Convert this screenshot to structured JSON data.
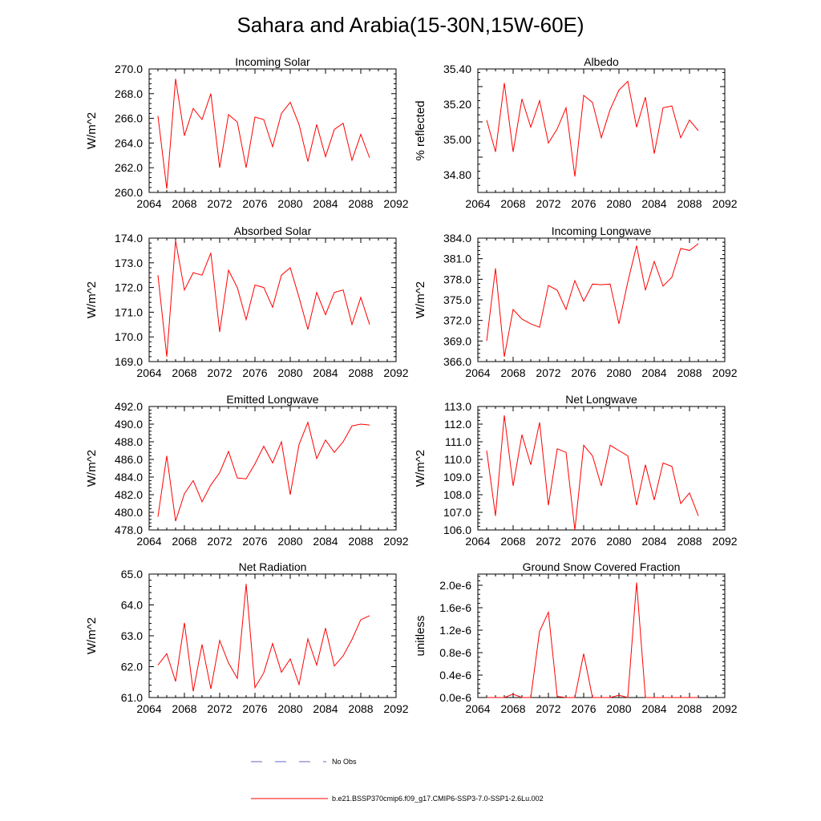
{
  "title": "Sahara and Arabia(15-30N,15W-60E)",
  "colors": {
    "model": "#ff0000",
    "obs": "#6666cc",
    "axis": "#000000"
  },
  "legend": {
    "obs_label": "No Obs",
    "model_label": "b.e21.BSSP370cmip6.f09_g17.CMIP6-SSP3-7.0-SSP1-2.6Lu.002"
  },
  "chart_data": [
    {
      "type": "line",
      "title": "Incoming Solar",
      "ylabel": "W/m^2",
      "xlabel": "",
      "xlim": [
        2064,
        2092
      ],
      "ylim": [
        260,
        270
      ],
      "xticks": [
        2064,
        2068,
        2072,
        2076,
        2080,
        2084,
        2088,
        2092
      ],
      "xtick_labels": [
        "2064",
        "2068",
        "2072",
        "2076",
        "2080",
        "2084",
        "2088",
        "2092"
      ],
      "yticks": [
        260,
        262,
        264,
        266,
        268,
        270
      ],
      "ytick_labels": [
        "260.0",
        "262.0",
        "264.0",
        "266.0",
        "268.0",
        "270.0"
      ],
      "x": [
        2065,
        2066,
        2067,
        2068,
        2069,
        2070,
        2071,
        2072,
        2073,
        2074,
        2075,
        2076,
        2077,
        2078,
        2079,
        2080,
        2081,
        2082,
        2083,
        2084,
        2085,
        2086,
        2087,
        2088,
        2089
      ],
      "y": [
        266.2,
        260.3,
        269.2,
        264.6,
        266.8,
        265.9,
        268.0,
        262.0,
        266.3,
        265.7,
        262.0,
        266.1,
        265.9,
        263.7,
        266.4,
        267.3,
        265.5,
        262.5,
        265.5,
        262.9,
        265.1,
        265.6,
        262.6,
        264.7,
        262.8
      ]
    },
    {
      "type": "line",
      "title": "Albedo",
      "ylabel": "% reflected",
      "xlabel": "",
      "xlim": [
        2064,
        2092
      ],
      "ylim": [
        34.7,
        35.4
      ],
      "xticks": [
        2064,
        2068,
        2072,
        2076,
        2080,
        2084,
        2088,
        2092
      ],
      "xtick_labels": [
        "2064",
        "2068",
        "2072",
        "2076",
        "2080",
        "2084",
        "2088",
        "2092"
      ],
      "yticks": [
        34.8,
        35.0,
        35.2,
        35.4
      ],
      "ytick_labels": [
        "34.80",
        "35.00",
        "35.20",
        "35.40"
      ],
      "x": [
        2065,
        2066,
        2067,
        2068,
        2069,
        2070,
        2071,
        2072,
        2073,
        2074,
        2075,
        2076,
        2077,
        2078,
        2079,
        2080,
        2081,
        2082,
        2083,
        2084,
        2085,
        2086,
        2087,
        2088,
        2089
      ],
      "y": [
        35.11,
        34.93,
        35.32,
        34.93,
        35.23,
        35.07,
        35.22,
        34.98,
        35.06,
        35.18,
        34.79,
        35.25,
        35.21,
        35.01,
        35.17,
        35.28,
        35.33,
        35.07,
        35.24,
        34.92,
        35.18,
        35.19,
        35.01,
        35.11,
        35.05
      ]
    },
    {
      "type": "line",
      "title": "Absorbed Solar",
      "ylabel": "W/m^2",
      "xlabel": "",
      "xlim": [
        2064,
        2092
      ],
      "ylim": [
        169,
        174
      ],
      "xticks": [
        2064,
        2068,
        2072,
        2076,
        2080,
        2084,
        2088,
        2092
      ],
      "xtick_labels": [
        "2064",
        "2068",
        "2072",
        "2076",
        "2080",
        "2084",
        "2088",
        "2092"
      ],
      "yticks": [
        169,
        170,
        171,
        172,
        173,
        174
      ],
      "ytick_labels": [
        "169.0",
        "170.0",
        "171.0",
        "172.0",
        "173.0",
        "174.0"
      ],
      "x": [
        2065,
        2066,
        2067,
        2068,
        2069,
        2070,
        2071,
        2072,
        2073,
        2074,
        2075,
        2076,
        2077,
        2078,
        2079,
        2080,
        2081,
        2082,
        2083,
        2084,
        2085,
        2086,
        2087,
        2088,
        2089
      ],
      "y": [
        172.5,
        169.2,
        173.9,
        171.9,
        172.6,
        172.5,
        173.4,
        170.2,
        172.7,
        172.0,
        170.7,
        172.1,
        172.0,
        171.2,
        172.5,
        172.8,
        171.6,
        170.3,
        171.8,
        170.9,
        171.8,
        171.9,
        170.5,
        171.6,
        170.5
      ]
    },
    {
      "type": "line",
      "title": "Incoming Longwave",
      "ylabel": "W/m^2",
      "xlabel": "",
      "xlim": [
        2064,
        2092
      ],
      "ylim": [
        366,
        384
      ],
      "xticks": [
        2064,
        2068,
        2072,
        2076,
        2080,
        2084,
        2088,
        2092
      ],
      "xtick_labels": [
        "2064",
        "2068",
        "2072",
        "2076",
        "2080",
        "2084",
        "2088",
        "2092"
      ],
      "yticks": [
        366,
        369,
        372,
        375,
        378,
        381,
        384
      ],
      "ytick_labels": [
        "366.0",
        "369.0",
        "372.0",
        "375.0",
        "378.0",
        "381.0",
        "384.0"
      ],
      "x": [
        2065,
        2066,
        2067,
        2068,
        2069,
        2070,
        2071,
        2072,
        2073,
        2074,
        2075,
        2076,
        2077,
        2078,
        2079,
        2080,
        2081,
        2082,
        2083,
        2084,
        2085,
        2086,
        2087,
        2088,
        2089
      ],
      "y": [
        369.0,
        379.6,
        366.7,
        373.6,
        372.2,
        371.5,
        371.0,
        377.1,
        376.4,
        373.6,
        377.8,
        374.8,
        377.3,
        377.2,
        377.3,
        371.5,
        377.6,
        382.9,
        376.4,
        380.6,
        377.0,
        378.3,
        382.5,
        382.2,
        383.2
      ]
    },
    {
      "type": "line",
      "title": "Emitted Longwave",
      "ylabel": "W/m^2",
      "xlabel": "",
      "xlim": [
        2064,
        2092
      ],
      "ylim": [
        478,
        492
      ],
      "xticks": [
        2064,
        2068,
        2072,
        2076,
        2080,
        2084,
        2088,
        2092
      ],
      "xtick_labels": [
        "2064",
        "2068",
        "2072",
        "2076",
        "2080",
        "2084",
        "2088",
        "2092"
      ],
      "yticks": [
        478,
        480,
        482,
        484,
        486,
        488,
        490,
        492
      ],
      "ytick_labels": [
        "478.0",
        "480.0",
        "482.0",
        "484.0",
        "486.0",
        "488.0",
        "490.0",
        "492.0"
      ],
      "x": [
        2065,
        2066,
        2067,
        2068,
        2069,
        2070,
        2071,
        2072,
        2073,
        2074,
        2075,
        2076,
        2077,
        2078,
        2079,
        2080,
        2081,
        2082,
        2083,
        2084,
        2085,
        2086,
        2087,
        2088,
        2089
      ],
      "y": [
        479.5,
        486.4,
        479.0,
        482.1,
        483.6,
        481.2,
        483.1,
        484.5,
        486.9,
        483.9,
        483.8,
        485.5,
        487.5,
        485.6,
        488.0,
        482.0,
        487.7,
        490.2,
        486.1,
        488.2,
        486.8,
        488.0,
        489.8,
        490.0,
        489.9
      ]
    },
    {
      "type": "line",
      "title": "Net Longwave",
      "ylabel": "W/m^2",
      "xlabel": "",
      "xlim": [
        2064,
        2092
      ],
      "ylim": [
        106,
        113
      ],
      "xticks": [
        2064,
        2068,
        2072,
        2076,
        2080,
        2084,
        2088,
        2092
      ],
      "xtick_labels": [
        "2064",
        "2068",
        "2072",
        "2076",
        "2080",
        "2084",
        "2088",
        "2092"
      ],
      "yticks": [
        106,
        107,
        108,
        109,
        110,
        111,
        112,
        113
      ],
      "ytick_labels": [
        "106.0",
        "107.0",
        "108.0",
        "109.0",
        "110.0",
        "111.0",
        "112.0",
        "113.0"
      ],
      "x": [
        2065,
        2066,
        2067,
        2068,
        2069,
        2070,
        2071,
        2072,
        2073,
        2074,
        2075,
        2076,
        2077,
        2078,
        2079,
        2080,
        2081,
        2082,
        2083,
        2084,
        2085,
        2086,
        2087,
        2088,
        2089
      ],
      "y": [
        110.5,
        106.8,
        112.5,
        108.5,
        111.4,
        109.7,
        112.1,
        107.4,
        110.6,
        110.4,
        106.0,
        110.8,
        110.2,
        108.5,
        110.8,
        110.5,
        110.2,
        107.4,
        109.7,
        107.7,
        109.8,
        109.6,
        107.5,
        108.1,
        106.8
      ]
    },
    {
      "type": "line",
      "title": "Net Radiation",
      "ylabel": "W/m^2",
      "xlabel": "",
      "xlim": [
        2064,
        2092
      ],
      "ylim": [
        61,
        65
      ],
      "xticks": [
        2064,
        2068,
        2072,
        2076,
        2080,
        2084,
        2088,
        2092
      ],
      "xtick_labels": [
        "2064",
        "2068",
        "2072",
        "2076",
        "2080",
        "2084",
        "2088",
        "2092"
      ],
      "yticks": [
        61,
        62,
        63,
        64,
        65
      ],
      "ytick_labels": [
        "61.0",
        "62.0",
        "63.0",
        "64.0",
        "65.0"
      ],
      "x": [
        2065,
        2066,
        2067,
        2068,
        2069,
        2070,
        2071,
        2072,
        2073,
        2074,
        2075,
        2076,
        2077,
        2078,
        2079,
        2080,
        2081,
        2082,
        2083,
        2084,
        2085,
        2086,
        2087,
        2088,
        2089
      ],
      "y": [
        62.05,
        62.42,
        61.52,
        63.42,
        61.2,
        62.72,
        61.28,
        62.85,
        62.12,
        61.62,
        64.68,
        61.32,
        61.8,
        62.75,
        61.82,
        62.25,
        61.42,
        62.9,
        62.05,
        63.25,
        62.02,
        62.35,
        62.88,
        63.52,
        63.65
      ]
    },
    {
      "type": "line",
      "title": "Ground Snow Covered Fraction",
      "ylabel": "unitless",
      "xlabel": "",
      "xlim": [
        2064,
        2092
      ],
      "ylim": [
        0,
        2.2e-06
      ],
      "xticks": [
        2064,
        2068,
        2072,
        2076,
        2080,
        2084,
        2088,
        2092
      ],
      "xtick_labels": [
        "2064",
        "2068",
        "2072",
        "2076",
        "2080",
        "2084",
        "2088",
        "2092"
      ],
      "yticks": [
        0,
        4e-07,
        8e-07,
        1.2e-06,
        1.6e-06,
        2e-06
      ],
      "ytick_labels": [
        "0.0e-6",
        "0.4e-6",
        "0.8e-6",
        "1.2e-6",
        "1.6e-6",
        "2.0e-6"
      ],
      "x": [
        2065,
        2066,
        2067,
        2068,
        2069,
        2070,
        2071,
        2072,
        2073,
        2074,
        2075,
        2076,
        2077,
        2078,
        2079,
        2080,
        2081,
        2082,
        2083,
        2084,
        2085,
        2086,
        2087,
        2088,
        2089
      ],
      "y": [
        0,
        0,
        0,
        6e-08,
        0,
        0,
        1.18e-06,
        1.52e-06,
        2e-08,
        0,
        0,
        7.8e-07,
        0,
        0,
        0,
        4e-08,
        0,
        2.05e-06,
        0,
        0,
        0,
        0,
        0,
        0,
        0
      ]
    }
  ]
}
